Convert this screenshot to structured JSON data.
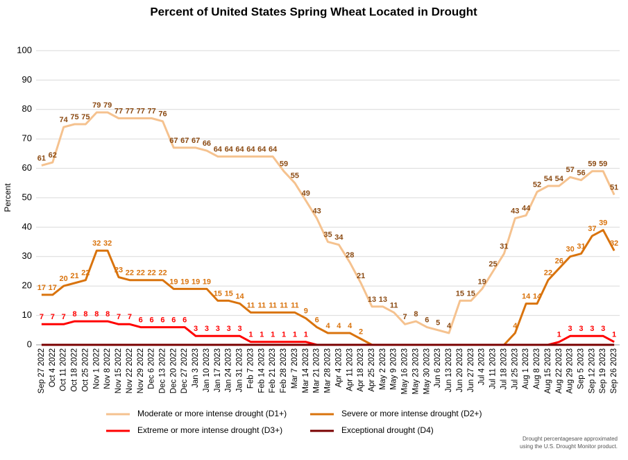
{
  "chart_data": {
    "type": "line",
    "title": "Percent of United States Spring Wheat Located in Drought",
    "y_label": "Percent",
    "categories": [
      "Sep 27 2022",
      "Oct 4 2022",
      "Oct 11 2022",
      "Oct 18 2022",
      "Oct 25 2022",
      "Nov 1 2022",
      "Nov 8 2022",
      "Nov 15 2022",
      "Nov 22 2022",
      "Nov 29 2022",
      "Dec 6 2022",
      "Dec 13 2022",
      "Dec 20 2022",
      "Dec 27 2022",
      "Jan 3 2023",
      "Jan 10 2023",
      "Jan 17 2023",
      "Jan 24 2023",
      "Jan 31 2023",
      "Feb 7 2023",
      "Feb 14 2023",
      "Feb 21 2023",
      "Feb 28 2023",
      "Mar 7 2023",
      "Mar 14 2023",
      "Mar 21 2023",
      "Mar 28 2023",
      "Apr 4 2023",
      "Apr 11 2023",
      "Apr 18 2023",
      "Apr 25 2023",
      "May 2 2023",
      "May 9 2023",
      "May 16 2023",
      "May 23 2023",
      "May 30 2023",
      "Jun 6 2023",
      "Jun 13 2023",
      "Jun 20 2023",
      "Jun 27 2023",
      "Jul 4 2023",
      "Jul 11 2023",
      "Jul 18 2023",
      "Jul 25 2023",
      "Aug 1 2023",
      "Aug 8 2023",
      "Aug 15 2023",
      "Aug 22 2023",
      "Aug 29 2023",
      "Sep 5 2023",
      "Sep 12 2023",
      "Sep 19 2023",
      "Sep 26 2023"
    ],
    "series": [
      {
        "name": "Moderate or more intense drought (D1+)",
        "color": "#f5c28f",
        "label_color": "#8b4a12",
        "values": [
          61,
          62,
          74,
          75,
          75,
          79,
          79,
          77,
          77,
          77,
          77,
          76,
          67,
          67,
          67,
          66,
          64,
          64,
          64,
          64,
          64,
          64,
          59,
          55,
          49,
          43,
          35,
          34,
          28,
          21,
          13,
          13,
          11,
          7,
          8,
          6,
          5,
          4,
          15,
          15,
          19,
          25,
          31,
          43,
          44,
          52,
          54,
          54,
          57,
          56,
          59,
          59,
          51
        ]
      },
      {
        "name": "Severe or more intense drought (D2+)",
        "color": "#d9730d",
        "label_color": "#d9730d",
        "values": [
          17,
          17,
          20,
          21,
          22,
          32,
          32,
          23,
          22,
          22,
          22,
          22,
          19,
          19,
          19,
          19,
          15,
          15,
          14,
          11,
          11,
          11,
          11,
          11,
          9,
          6,
          4,
          4,
          4,
          2,
          0,
          0,
          0,
          0,
          0,
          0,
          0,
          0,
          0,
          0,
          0,
          0,
          0,
          4,
          14,
          14,
          22,
          26,
          30,
          31,
          37,
          39,
          32
        ]
      },
      {
        "name": "Extreme or more intense drought (D3+)",
        "color": "#ff0000",
        "label_color": "#ff0000",
        "values": [
          7,
          7,
          7,
          8,
          8,
          8,
          8,
          7,
          7,
          6,
          6,
          6,
          6,
          6,
          3,
          3,
          3,
          3,
          3,
          1,
          1,
          1,
          1,
          1,
          1,
          0,
          0,
          0,
          0,
          0,
          0,
          0,
          0,
          0,
          0,
          0,
          0,
          0,
          0,
          0,
          0,
          0,
          0,
          0,
          0,
          0,
          0,
          1,
          3,
          3,
          3,
          3,
          1
        ]
      },
      {
        "name": "Exceptional drought (D4)",
        "color": "#7a0000",
        "values": [
          0,
          0,
          0,
          0,
          0,
          0,
          0,
          0,
          0,
          0,
          0,
          0,
          0,
          0,
          0,
          0,
          0,
          0,
          0,
          0,
          0,
          0,
          0,
          0,
          0,
          0,
          0,
          0,
          0,
          0,
          0,
          0,
          0,
          0,
          0,
          0,
          0,
          0,
          0,
          0,
          0,
          0,
          0,
          0,
          0,
          0,
          0,
          0,
          0,
          0,
          0,
          0,
          0
        ]
      }
    ],
    "ylim": [
      0,
      100
    ],
    "yticks": [
      0,
      10,
      20,
      30,
      40,
      50,
      60,
      70,
      80,
      90,
      100
    ],
    "grid": true,
    "note": [
      "Drought percentagesare approximated",
      "using the U.S. Drought Monitor product."
    ]
  }
}
